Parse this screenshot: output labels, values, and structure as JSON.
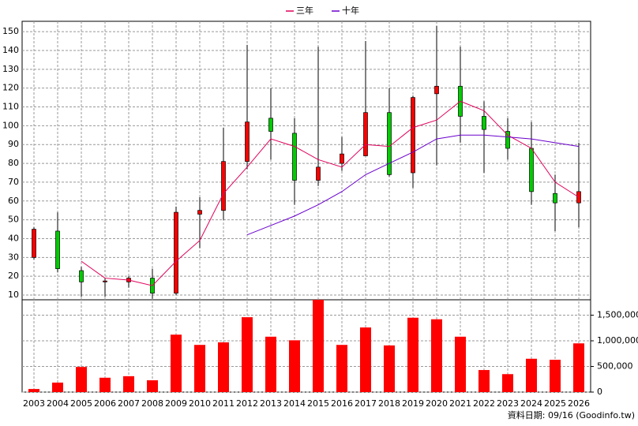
{
  "chart_data": {
    "type": "candlestick",
    "categories": [
      "2003",
      "2004",
      "2005",
      "2006",
      "2007",
      "2008",
      "2009",
      "2010",
      "2011",
      "2012",
      "2013",
      "2014",
      "2015",
      "2016",
      "2017",
      "2018",
      "2019",
      "2020",
      "2021",
      "2022",
      "2023",
      "2024",
      "2025",
      "2026"
    ],
    "open": [
      30,
      44,
      23,
      17,
      17,
      19,
      11,
      53,
      55,
      81,
      104,
      96,
      71,
      80,
      84,
      107,
      75,
      117,
      121,
      105,
      97,
      88,
      64,
      59
    ],
    "high": [
      46,
      54,
      25,
      19,
      20,
      24,
      57,
      62,
      99,
      143,
      120,
      104,
      142,
      94,
      145,
      120,
      116,
      153,
      142,
      113,
      104,
      102,
      74,
      91
    ],
    "low": [
      29,
      22,
      9,
      9,
      14,
      8,
      10,
      35,
      50,
      77,
      82,
      58,
      68,
      76,
      84,
      73,
      67,
      79,
      91,
      75,
      82,
      58,
      44,
      46
    ],
    "close": [
      45,
      24,
      17,
      17.5,
      19,
      11,
      54,
      55,
      81,
      102,
      97,
      71,
      78,
      85,
      107,
      74,
      115,
      121,
      105,
      98,
      88,
      65,
      59,
      65
    ],
    "up_color": "#ff0000",
    "down_color": "#00cc00",
    "ylim": [
      7.5,
      155.5
    ],
    "yticks": [
      10,
      20,
      30,
      40,
      50,
      60,
      70,
      80,
      90,
      100,
      110,
      120,
      130,
      140,
      150
    ],
    "grid": true,
    "series": [
      {
        "name": "三年",
        "color": "#e0005a",
        "values": [
          null,
          null,
          28,
          19,
          18,
          15,
          28,
          39,
          64,
          78,
          93,
          89,
          82,
          78,
          90,
          89,
          99,
          103,
          113,
          108,
          95,
          88,
          70,
          62
        ]
      },
      {
        "name": "十年",
        "color": "#6a00cc",
        "values": [
          null,
          null,
          null,
          null,
          null,
          null,
          null,
          null,
          null,
          42,
          47,
          52,
          58,
          65,
          74,
          80,
          86,
          93,
          95,
          95,
          94,
          93,
          91,
          89
        ]
      }
    ],
    "volume": {
      "color": "#ff0000",
      "values": [
        60000,
        185000,
        490000,
        280000,
        310000,
        230000,
        1120000,
        920000,
        970000,
        1460000,
        1080000,
        1010000,
        1800000,
        920000,
        1260000,
        910000,
        1450000,
        1420000,
        1080000,
        430000,
        350000,
        650000,
        630000,
        950000
      ],
      "ylim": [
        0,
        1800000
      ],
      "yticks": [
        0,
        {
          "value": 500000,
          "label": "500,000"
        },
        {
          "value": 1000000,
          "label": "1,000,000"
        },
        {
          "value": 1500000,
          "label": "1,500,000"
        }
      ]
    },
    "source": "資料日期: 09/16 (Goodinfo.tw)"
  }
}
